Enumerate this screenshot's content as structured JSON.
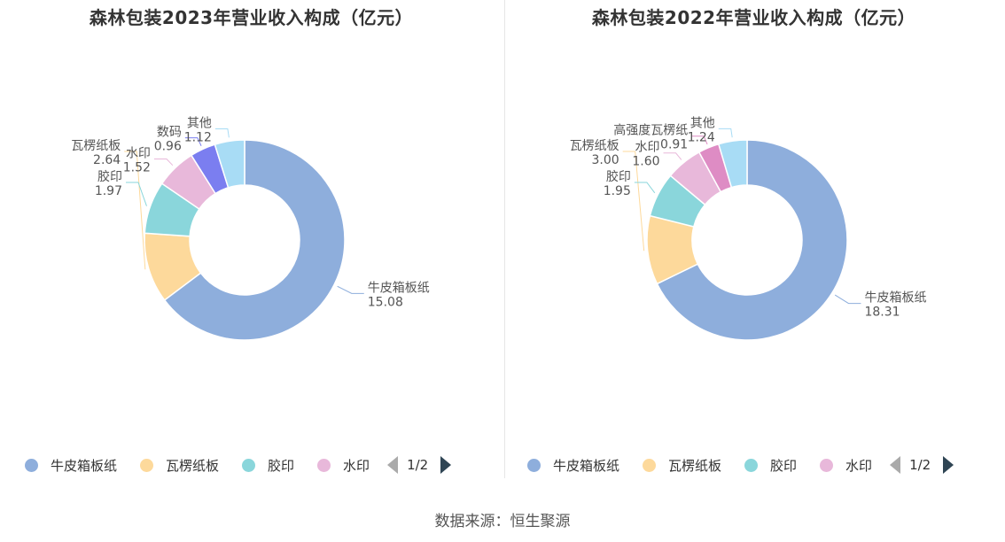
{
  "source": "数据来源：恒生聚源",
  "chart_data": [
    {
      "type": "pie",
      "title": "森林包装2023年营业收入构成（亿元）",
      "slices": [
        {
          "name": "牛皮箱板纸",
          "value": 15.08,
          "value_label": "15.08",
          "color": "#8eaedc"
        },
        {
          "name": "瓦楞纸板",
          "value": 2.64,
          "value_label": "2.64",
          "color": "#fdd99b"
        },
        {
          "name": "胶印",
          "value": 1.97,
          "value_label": "1.97",
          "color": "#8ad6db"
        },
        {
          "name": "水印",
          "value": 1.52,
          "value_label": "1.52",
          "color": "#e8b8da"
        },
        {
          "name": "数码",
          "value": 0.96,
          "value_label": "0.96",
          "color": "#7b7ef0"
        },
        {
          "name": "其他",
          "value": 1.12,
          "value_label": "1.12",
          "color": "#a8dcf5"
        }
      ],
      "legend": {
        "items": [
          "牛皮箱板纸",
          "瓦楞纸板",
          "胶印",
          "水印"
        ],
        "page": "1/2"
      }
    },
    {
      "type": "pie",
      "title": "森林包装2022年营业收入构成（亿元）",
      "slices": [
        {
          "name": "牛皮箱板纸",
          "value": 18.31,
          "value_label": "18.31",
          "color": "#8eaedc"
        },
        {
          "name": "瓦楞纸板",
          "value": 3.0,
          "value_label": "3.00",
          "color": "#fdd99b"
        },
        {
          "name": "胶印",
          "value": 1.95,
          "value_label": "1.95",
          "color": "#8ad6db"
        },
        {
          "name": "水印",
          "value": 1.6,
          "value_label": "1.60",
          "color": "#e8b8da"
        },
        {
          "name": "高强度瓦楞纸",
          "value": 0.91,
          "value_label": "0.91",
          "color": "#de8cc4"
        },
        {
          "name": "其他",
          "value": 1.24,
          "value_label": "1.24",
          "color": "#a8dcf5"
        }
      ],
      "legend": {
        "items": [
          "牛皮箱板纸",
          "瓦楞纸板",
          "胶印",
          "水印"
        ],
        "page": "1/2"
      }
    }
  ]
}
